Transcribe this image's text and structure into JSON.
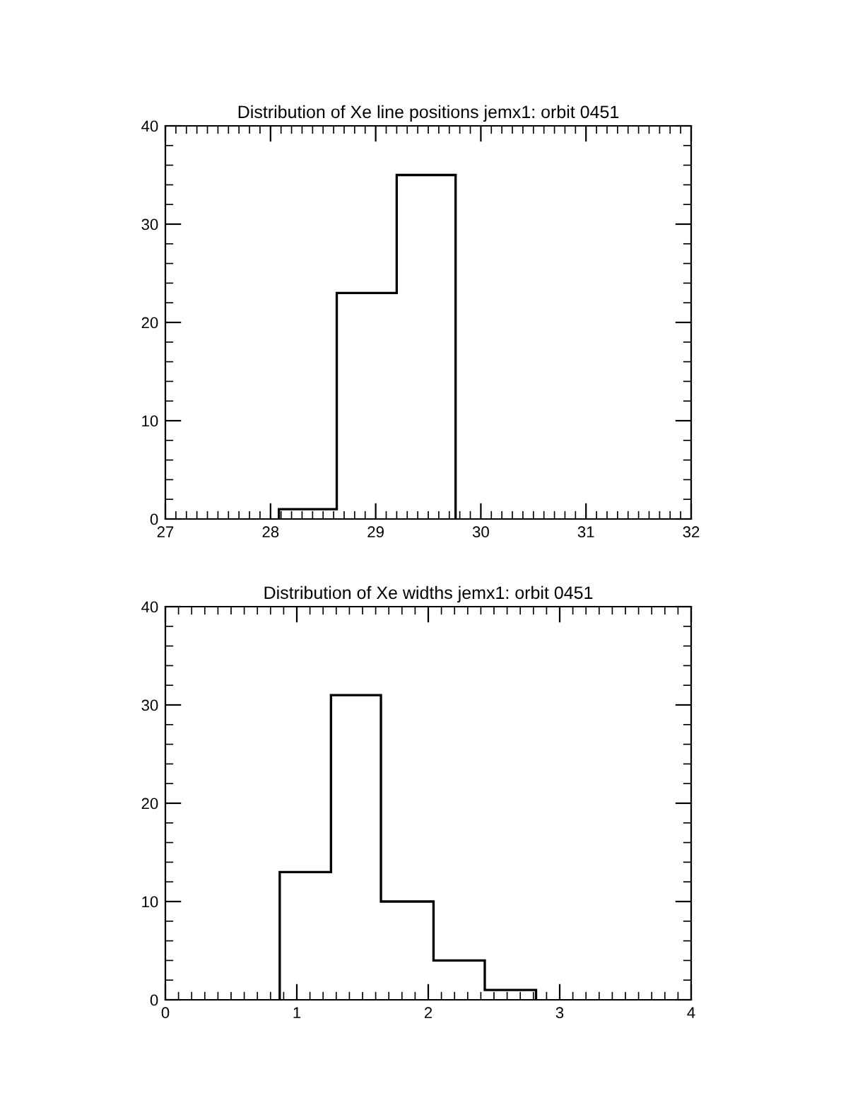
{
  "chart_data": [
    {
      "type": "histogram",
      "title": "Distribution of Xe line positions jemx1: orbit 0451",
      "bins": [
        28.08,
        28.63,
        29.2,
        29.76
      ],
      "values": [
        1,
        23,
        35
      ],
      "color": "#000000",
      "xlim": [
        27,
        32
      ],
      "xticks": [
        27,
        28,
        29,
        30,
        31,
        32
      ],
      "ylim": [
        0,
        40
      ],
      "yticks": [
        0,
        10,
        20,
        30,
        40
      ],
      "grid": false,
      "legend": false
    },
    {
      "type": "histogram",
      "title": "Distribution of Xe widths jemx1: orbit 0451",
      "bins": [
        0.87,
        1.26,
        1.64,
        2.04,
        2.43,
        2.82
      ],
      "values": [
        13,
        31,
        10,
        4,
        1
      ],
      "color": "#000000",
      "xlim": [
        0,
        4
      ],
      "xticks": [
        0,
        1,
        2,
        3,
        4
      ],
      "ylim": [
        0,
        40
      ],
      "yticks": [
        0,
        10,
        20,
        30,
        40
      ],
      "grid": false,
      "legend": false
    }
  ]
}
